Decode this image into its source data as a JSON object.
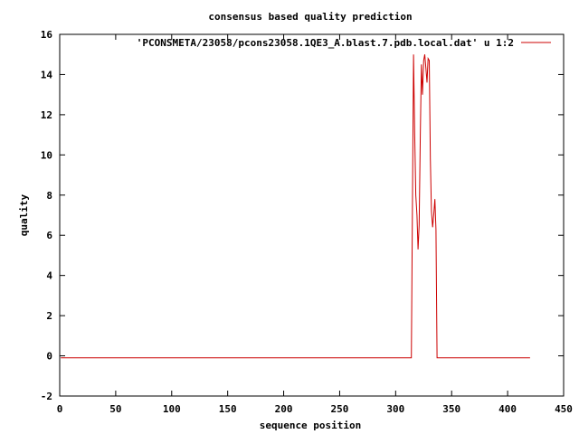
{
  "chart_data": {
    "type": "line",
    "title": "consensus based quality prediction",
    "xlabel": "sequence position",
    "ylabel": "quality",
    "xlim": [
      0,
      450
    ],
    "ylim": [
      -2,
      16
    ],
    "xticks": [
      "0",
      "50",
      "100",
      "150",
      "200",
      "250",
      "300",
      "350",
      "400",
      "450"
    ],
    "yticks": [
      "-2",
      "0",
      "2",
      "4",
      "6",
      "8",
      "10",
      "12",
      "14",
      "16"
    ],
    "grid": false,
    "legend_position": "top-right",
    "series": [
      {
        "name": "'PCONSMETA/23058/pcons23058.1QE3_A.blast.7.pdb.local.dat' u 1:2",
        "color": "#cc0000",
        "x": [
          1,
          314,
          315,
          316,
          317,
          318,
          319,
          320,
          321,
          322,
          323,
          324,
          325,
          326,
          327,
          328,
          329,
          330,
          331,
          332,
          333,
          334,
          335,
          336,
          337,
          338,
          339,
          340,
          341,
          342,
          420
        ],
        "y": [
          -0.1,
          -0.1,
          7.5,
          15.0,
          11.0,
          8.0,
          7.0,
          5.3,
          6.5,
          11.0,
          14.5,
          13.0,
          14.7,
          15.0,
          14.3,
          13.6,
          14.8,
          14.7,
          9.8,
          7.2,
          6.4,
          7.0,
          7.8,
          6.3,
          -0.1,
          -0.1,
          -0.1,
          -0.1,
          -0.1,
          -0.1,
          -0.1
        ]
      }
    ]
  }
}
